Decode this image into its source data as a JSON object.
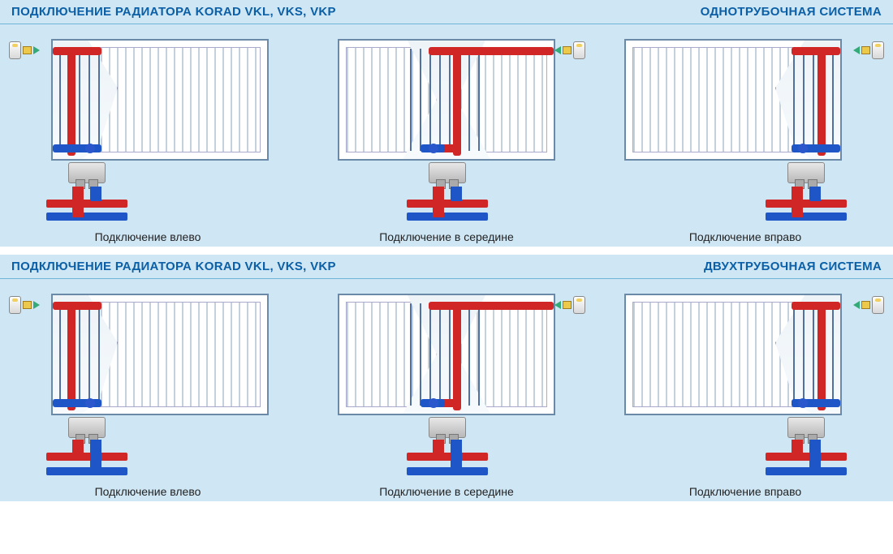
{
  "colors": {
    "header_bg": "#cfe6f4",
    "header_text": "#0a5fa6",
    "panel_bg": "#cfe6f4",
    "radiator_border": "#6a8aa8",
    "hot": "#d02626",
    "cold": "#1e56c8",
    "fin_dark": "#c4d0db",
    "fin_light": "#ffffff",
    "caption": "#232323"
  },
  "sections": [
    {
      "title_left": "ПОДКЛЮЧЕНИЕ РАДИАТОРА  KORAD VKL, VKS, VKP",
      "title_right": "ОДНОТРУБОЧНАЯ СИСТЕМА",
      "system": "single",
      "items": [
        {
          "caption": "Подключение влево",
          "valve_side": "left",
          "cut": "left",
          "bottom_align": "left"
        },
        {
          "caption": "Подключение в середине",
          "valve_side": "right",
          "cut": "center",
          "bottom_align": "center"
        },
        {
          "caption": "Подключение вправо",
          "valve_side": "right",
          "cut": "right",
          "bottom_align": "right"
        }
      ]
    },
    {
      "title_left": "ПОДКЛЮЧЕНИЕ РАДИАТОРА  KORAD VKL, VKS, VKP",
      "title_right": "ДВУХТРУБОЧНАЯ СИСТЕМА",
      "system": "double",
      "items": [
        {
          "caption": "Подключение влево",
          "valve_side": "left",
          "cut": "left",
          "bottom_align": "left"
        },
        {
          "caption": "Подключение в середине",
          "valve_side": "right",
          "cut": "center",
          "bottom_align": "center"
        },
        {
          "caption": "Подключение вправо",
          "valve_side": "right",
          "cut": "right",
          "bottom_align": "right"
        }
      ]
    }
  ]
}
